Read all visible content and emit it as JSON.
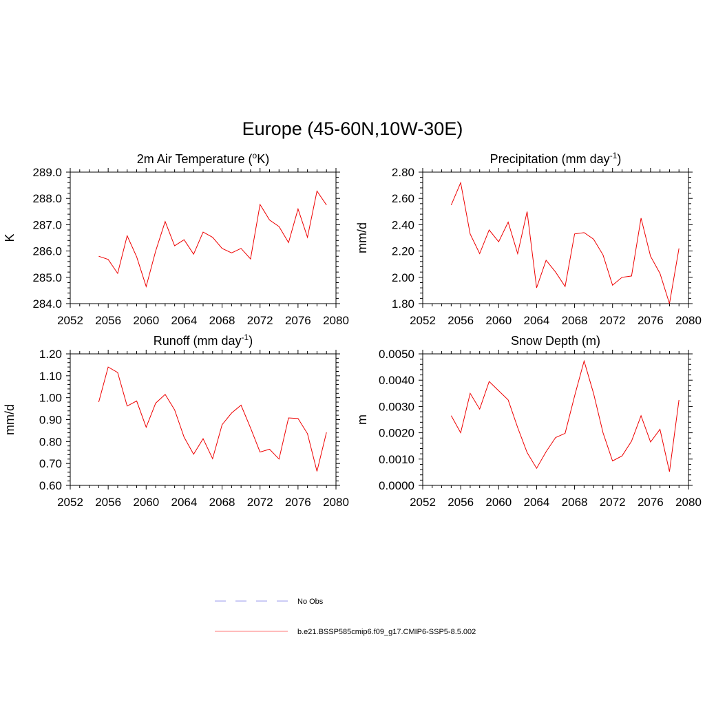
{
  "figure": {
    "title": "Europe (45-60N,10W-30E)"
  },
  "legend": [
    {
      "label": "No Obs",
      "color": "#9999ee",
      "dash": "dashed"
    },
    {
      "label": "b.e21.BSSP585cmip6.f09_g17.CMIP6-SSP5-8.5.002",
      "color": "#ff7777",
      "dash": "solid"
    }
  ],
  "chart_data": [
    {
      "type": "line",
      "title": "2m Air Temperature (°K)",
      "title_main": "2m Air Temperature (",
      "title_sup": "o",
      "title_end": "K)",
      "ylabel": "K",
      "xlim": [
        2052,
        2080
      ],
      "ylim": [
        284.0,
        289.0
      ],
      "xticks": [
        2052,
        2056,
        2060,
        2064,
        2068,
        2072,
        2076,
        2080
      ],
      "xtick_labels": [
        "2052",
        "2056",
        "2060",
        "2064",
        "2068",
        "2072",
        "2076",
        "2080"
      ],
      "yticks": [
        284.0,
        285.0,
        286.0,
        287.0,
        288.0,
        289.0
      ],
      "ytick_labels": [
        "284.0",
        "285.0",
        "286.0",
        "287.0",
        "288.0",
        "289.0"
      ],
      "line_color": "#ee0000",
      "series": [
        {
          "x": [
            2055,
            2056,
            2057,
            2058,
            2059,
            2060,
            2061,
            2062,
            2063,
            2064,
            2065,
            2066,
            2067,
            2068,
            2069,
            2070,
            2071,
            2072,
            2073,
            2074,
            2075,
            2076,
            2077,
            2078,
            2079
          ],
          "values": [
            285.8,
            285.68,
            285.15,
            286.58,
            285.78,
            284.65,
            286.0,
            287.12,
            286.2,
            286.43,
            285.88,
            286.72,
            286.52,
            286.1,
            285.93,
            286.1,
            285.7,
            287.77,
            287.18,
            286.93,
            286.32,
            287.6,
            286.52,
            288.28,
            287.75
          ]
        }
      ]
    },
    {
      "type": "line",
      "title": "Precipitation (mm day-1)",
      "title_main": "Precipitation (mm day",
      "title_sup": "-1",
      "title_end": ")",
      "ylabel": "mm/d",
      "xlim": [
        2052,
        2080
      ],
      "ylim": [
        1.8,
        2.8
      ],
      "xticks": [
        2052,
        2056,
        2060,
        2064,
        2068,
        2072,
        2076,
        2080
      ],
      "xtick_labels": [
        "2052",
        "2056",
        "2060",
        "2064",
        "2068",
        "2072",
        "2076",
        "2080"
      ],
      "yticks": [
        1.8,
        2.0,
        2.2,
        2.4,
        2.6,
        2.8
      ],
      "ytick_labels": [
        "1.80",
        "2.00",
        "2.20",
        "2.40",
        "2.60",
        "2.80"
      ],
      "line_color": "#ee0000",
      "series": [
        {
          "x": [
            2055,
            2056,
            2057,
            2058,
            2059,
            2060,
            2061,
            2062,
            2063,
            2064,
            2065,
            2066,
            2067,
            2068,
            2069,
            2070,
            2071,
            2072,
            2073,
            2074,
            2075,
            2076,
            2077,
            2078,
            2079
          ],
          "values": [
            2.55,
            2.72,
            2.33,
            2.18,
            2.36,
            2.27,
            2.42,
            2.18,
            2.5,
            1.92,
            2.13,
            2.04,
            1.93,
            2.33,
            2.34,
            2.29,
            2.17,
            1.94,
            2.0,
            2.01,
            2.45,
            2.16,
            2.03,
            1.8,
            2.22
          ]
        }
      ]
    },
    {
      "type": "line",
      "title": "Runoff (mm day-1)",
      "title_main": "Runoff (mm day",
      "title_sup": "-1",
      "title_end": ")",
      "ylabel": "mm/d",
      "xlim": [
        2052,
        2080
      ],
      "ylim": [
        0.6,
        1.2
      ],
      "xticks": [
        2052,
        2056,
        2060,
        2064,
        2068,
        2072,
        2076,
        2080
      ],
      "xtick_labels": [
        "2052",
        "2056",
        "2060",
        "2064",
        "2068",
        "2072",
        "2076",
        "2080"
      ],
      "yticks": [
        0.6,
        0.7,
        0.8,
        0.9,
        1.0,
        1.1,
        1.2
      ],
      "ytick_labels": [
        "0.60",
        "0.70",
        "0.80",
        "0.90",
        "1.00",
        "1.10",
        "1.20"
      ],
      "line_color": "#ee0000",
      "series": [
        {
          "x": [
            2055,
            2056,
            2057,
            2058,
            2059,
            2060,
            2061,
            2062,
            2063,
            2064,
            2065,
            2066,
            2067,
            2068,
            2069,
            2070,
            2071,
            2072,
            2073,
            2074,
            2075,
            2076,
            2077,
            2078,
            2079
          ],
          "values": [
            0.98,
            1.14,
            1.115,
            0.962,
            0.985,
            0.865,
            0.975,
            1.015,
            0.945,
            0.82,
            0.742,
            0.813,
            0.722,
            0.877,
            0.93,
            0.966,
            0.862,
            0.752,
            0.765,
            0.72,
            0.908,
            0.905,
            0.836,
            0.664,
            0.842
          ]
        }
      ]
    },
    {
      "type": "line",
      "title": "Snow Depth (m)",
      "title_main": "Snow Depth (m)",
      "title_sup": "",
      "title_end": "",
      "ylabel": "m",
      "xlim": [
        2052,
        2080
      ],
      "ylim": [
        0.0,
        0.005
      ],
      "xticks": [
        2052,
        2056,
        2060,
        2064,
        2068,
        2072,
        2076,
        2080
      ],
      "xtick_labels": [
        "2052",
        "2056",
        "2060",
        "2064",
        "2068",
        "2072",
        "2076",
        "2080"
      ],
      "yticks": [
        0.0,
        0.001,
        0.002,
        0.003,
        0.004,
        0.005
      ],
      "ytick_labels": [
        "0.0000",
        "0.0010",
        "0.0020",
        "0.0030",
        "0.0040",
        "0.0050"
      ],
      "line_color": "#ee0000",
      "series": [
        {
          "x": [
            2055,
            2056,
            2057,
            2058,
            2059,
            2060,
            2061,
            2062,
            2063,
            2064,
            2065,
            2066,
            2067,
            2068,
            2069,
            2070,
            2071,
            2072,
            2073,
            2074,
            2075,
            2076,
            2077,
            2078,
            2079
          ],
          "values": [
            0.00265,
            0.002,
            0.0035,
            0.0029,
            0.00395,
            0.0036,
            0.00325,
            0.0022,
            0.00125,
            0.00065,
            0.00128,
            0.00182,
            0.00198,
            0.0034,
            0.00473,
            0.0035,
            0.002,
            0.00093,
            0.00112,
            0.00168,
            0.00265,
            0.00165,
            0.00213,
            0.00052,
            0.00325
          ]
        }
      ]
    }
  ]
}
